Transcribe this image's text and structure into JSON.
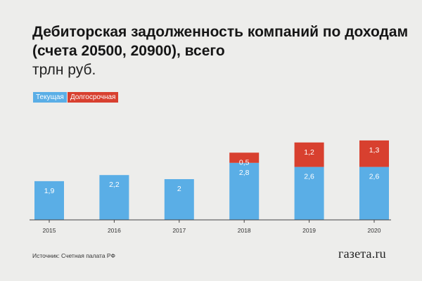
{
  "header": {
    "title": "Дебиторская задолженность компаний по доходам (счета 20500, 20900), всего",
    "subtitle": "трлн руб."
  },
  "legend": {
    "current_label": "Текущая",
    "longterm_label": "Долгосрочная"
  },
  "footer": {
    "source": "Источник: Счетная палата РФ",
    "logo_text": "газета.ru"
  },
  "colors": {
    "current": "#5aaee6",
    "longterm": "#d8402f",
    "background": "#ededeb",
    "axis": "#444444"
  },
  "chart_data": {
    "type": "bar",
    "stacked": true,
    "categories": [
      "2015",
      "2016",
      "2017",
      "2018",
      "2019",
      "2020"
    ],
    "series": [
      {
        "name": "Текущая",
        "values": [
          1.9,
          2.2,
          2,
          2.8,
          2.6,
          2.6
        ],
        "labels": [
          "1,9",
          "2,2",
          "2",
          "2,8",
          "2,6",
          "2,6"
        ]
      },
      {
        "name": "Долгосрочная",
        "values": [
          null,
          null,
          null,
          0.5,
          1.2,
          1.3
        ],
        "labels": [
          "",
          "",
          "",
          "0,5",
          "1,2",
          "1,3"
        ]
      }
    ],
    "title": "Дебиторская задолженность компаний по доходам (счета 20500, 20900), всего",
    "subtitle": "трлн руб.",
    "ylim": [
      0,
      4.0
    ],
    "grid": false,
    "legend_position": "top-left"
  }
}
